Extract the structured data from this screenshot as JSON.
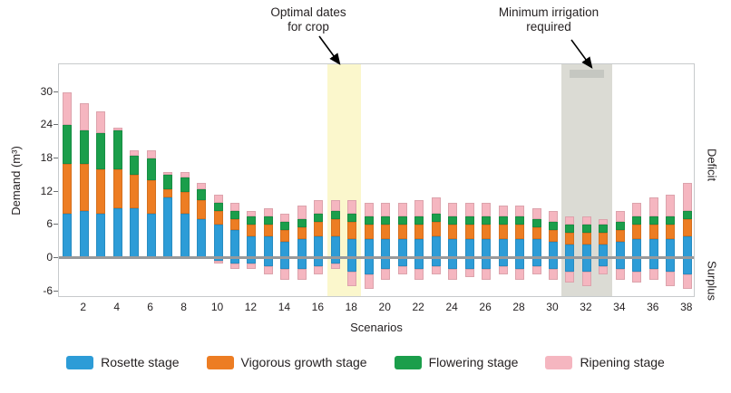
{
  "chart_data": {
    "type": "bar",
    "stacked": true,
    "title": "",
    "xlabel": "Scenarios",
    "ylabel": "Demand (m³)",
    "right_axis_labels": {
      "top": "Deficit",
      "bottom": "Surplus"
    },
    "xticks": [
      2,
      4,
      6,
      8,
      10,
      12,
      14,
      16,
      18,
      20,
      22,
      24,
      26,
      28,
      30,
      32,
      34,
      36,
      38
    ],
    "yticks": [
      30,
      24,
      18,
      12,
      6,
      0,
      -6
    ],
    "ylim": [
      -7.2,
      35
    ],
    "legend_position": "bottom",
    "annotations": [
      {
        "line1": "Optimal dates",
        "line2": "for crop"
      },
      {
        "line1": "Minimum irrigation",
        "line2": "required"
      }
    ],
    "bands": [
      {
        "name": "optimal-dates-band",
        "from_scenario": 16.5,
        "to_scenario": 18.5,
        "color": "#FBF7CC",
        "cap": false
      },
      {
        "name": "minimum-irrigation-band",
        "from_scenario": 30.5,
        "to_scenario": 33.5,
        "color": "#DBDBD4",
        "cap": true
      }
    ],
    "series": [
      {
        "name": "Rosette stage",
        "color": "#2D9CD7",
        "pos": [
          8,
          8.5,
          8,
          9,
          9,
          8,
          11,
          8,
          7,
          6,
          5,
          4,
          4,
          3,
          3.5,
          4,
          4,
          3.5,
          3.5,
          3.5,
          3.5,
          3.5,
          4,
          3.5,
          3.5,
          3.5,
          3.5,
          3.5,
          3.5,
          3,
          2.5,
          2.5,
          2.5,
          3,
          3.5,
          3.5,
          3.5,
          4
        ],
        "neg": [
          0,
          0,
          0,
          0,
          0,
          0,
          0,
          0,
          0,
          0.5,
          1,
          1,
          1.5,
          2,
          2,
          1.5,
          1,
          2.5,
          3,
          2,
          1.5,
          2,
          1.5,
          2,
          2,
          2,
          1.5,
          2,
          1.5,
          2,
          2.5,
          2.5,
          1.5,
          2,
          2.5,
          2,
          2.5,
          3
        ]
      },
      {
        "name": "Vigorous growth stage",
        "color": "#ED7D23",
        "pos": [
          9,
          8.5,
          8,
          7,
          6,
          6,
          1.5,
          4,
          3.5,
          2.5,
          2,
          2,
          2,
          2,
          2,
          2.5,
          3,
          3,
          2.5,
          2.5,
          2.5,
          2.5,
          2.5,
          2.5,
          2.5,
          2.5,
          2.5,
          2.5,
          2,
          2,
          2,
          2,
          2,
          2,
          2.5,
          2.5,
          2.5,
          3
        ],
        "neg": [
          0,
          0,
          0,
          0,
          0,
          0,
          0,
          0,
          0,
          0,
          0,
          0,
          0,
          0,
          0,
          0,
          0,
          0,
          0,
          0,
          0,
          0,
          0,
          0,
          0,
          0,
          0,
          0,
          0,
          0,
          0,
          0,
          0,
          0,
          0,
          0,
          0,
          0
        ]
      },
      {
        "name": "Flowering stage",
        "color": "#1B9E4B",
        "pos": [
          7,
          6,
          6.5,
          7,
          3.5,
          4,
          2.5,
          2.5,
          2,
          1.5,
          1.5,
          1.5,
          1.5,
          1.5,
          1.5,
          1.5,
          1.5,
          1.5,
          1.5,
          1.5,
          1.5,
          1.5,
          1.5,
          1.5,
          1.5,
          1.5,
          1.5,
          1.5,
          1.5,
          1.5,
          1.5,
          1.5,
          1.5,
          1.5,
          1.5,
          1.5,
          1.5,
          1.5
        ],
        "neg": [
          0,
          0,
          0,
          0,
          0,
          0,
          0,
          0,
          0,
          0,
          0,
          0,
          0,
          0,
          0,
          0,
          0,
          0,
          0,
          0,
          0,
          0,
          0,
          0,
          0,
          0,
          0,
          0,
          0,
          0,
          0,
          0,
          0,
          0,
          0,
          0,
          0,
          0
        ]
      },
      {
        "name": "Ripening stage",
        "color": "#F5B6C0",
        "pos": [
          6,
          5,
          4,
          0.5,
          1,
          1.5,
          0.5,
          1,
          1,
          1.5,
          1.5,
          1,
          1.5,
          1.5,
          2.5,
          2.5,
          2,
          2.5,
          2.5,
          2.5,
          2.5,
          3,
          3,
          2.5,
          2.5,
          2.5,
          2,
          2,
          2,
          2,
          1.5,
          1.5,
          1,
          2,
          2.5,
          3.5,
          4,
          5
        ],
        "neg": [
          0,
          0,
          0,
          0,
          0,
          0,
          0,
          0,
          0,
          0.5,
          1,
          1,
          1.5,
          2,
          2,
          1.5,
          1,
          2.5,
          2.5,
          2,
          1.5,
          2,
          1.5,
          2,
          1.5,
          2,
          1.5,
          2,
          1.5,
          2,
          2,
          2.5,
          1.5,
          2,
          2,
          2,
          2.5,
          2.5
        ]
      }
    ]
  }
}
